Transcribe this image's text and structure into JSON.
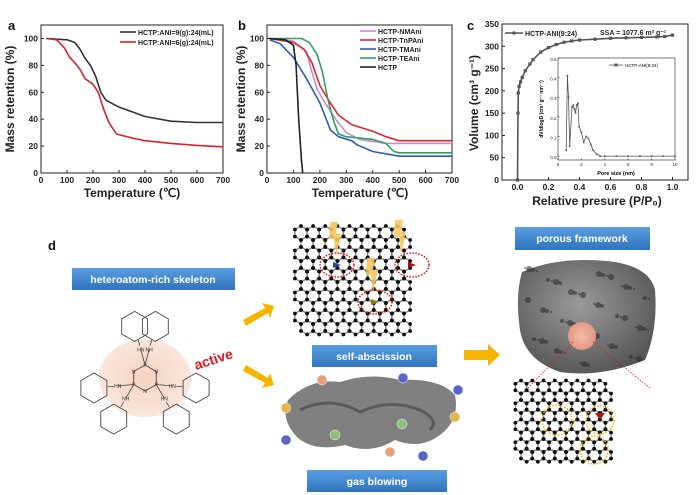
{
  "panel_labels": {
    "a": "a",
    "b": "b",
    "c": "c",
    "d": "d"
  },
  "colors": {
    "box_blue": "#3f86cc",
    "arrow_yellow": "#f5b400",
    "active_red": "#e0151b",
    "glow": "#f7dccb"
  },
  "chart_data": [
    {
      "type": "line",
      "panel": "a",
      "xlabel": "Temperature (℃)",
      "ylabel": "Mass retention (%)",
      "xlim": [
        0,
        700
      ],
      "ylim": [
        0,
        110
      ],
      "xticks": [
        0,
        100,
        200,
        300,
        400,
        500,
        600,
        700
      ],
      "yticks": [
        0,
        20,
        40,
        60,
        80,
        100
      ],
      "grid": false,
      "legend": "top-right",
      "series": [
        {
          "name": "HCTP:ANI=9(g):24(mL)",
          "color": "#333333",
          "points": [
            [
              20,
              100
            ],
            [
              100,
              99
            ],
            [
              130,
              97
            ],
            [
              150,
              92
            ],
            [
              170,
              85
            ],
            [
              190,
              80
            ],
            [
              210,
              72
            ],
            [
              230,
              60
            ],
            [
              250,
              54
            ],
            [
              300,
              49
            ],
            [
              400,
              42
            ],
            [
              500,
              38.5
            ],
            [
              600,
              37.5
            ],
            [
              700,
              37.5
            ]
          ]
        },
        {
          "name": "HCTP:ANI=6(g):24(mL)",
          "color": "#d8232a",
          "points": [
            [
              20,
              100
            ],
            [
              60,
              99
            ],
            [
              90,
              93
            ],
            [
              110,
              86
            ],
            [
              130,
              82
            ],
            [
              150,
              77
            ],
            [
              170,
              70
            ],
            [
              200,
              66
            ],
            [
              220,
              60
            ],
            [
              240,
              48
            ],
            [
              260,
              38
            ],
            [
              290,
              29
            ],
            [
              350,
              26
            ],
            [
              400,
              24
            ],
            [
              500,
              22
            ],
            [
              600,
              20.5
            ],
            [
              700,
              19.5
            ]
          ]
        }
      ]
    },
    {
      "type": "line",
      "panel": "b",
      "xlabel": "Temperature (℃)",
      "ylabel": "Mass retention (%)",
      "xlim": [
        0,
        700
      ],
      "ylim": [
        0,
        110
      ],
      "xticks": [
        0,
        100,
        200,
        300,
        400,
        500,
        600,
        700
      ],
      "yticks": [
        0,
        20,
        40,
        60,
        80,
        100
      ],
      "grid": false,
      "legend": "top-right",
      "series": [
        {
          "name": "HCTP-NMAni",
          "color": "#c98bcb",
          "points": [
            [
              10,
              100
            ],
            [
              100,
              98
            ],
            [
              150,
              90
            ],
            [
              170,
              75
            ],
            [
              190,
              62
            ],
            [
              220,
              52
            ],
            [
              260,
              40
            ],
            [
              300,
              30
            ],
            [
              350,
              25
            ],
            [
              450,
              22
            ],
            [
              500,
              22
            ],
            [
              700,
              22
            ]
          ]
        },
        {
          "name": "HCTP-TnPAni",
          "color": "#e0262e",
          "points": [
            [
              10,
              100
            ],
            [
              100,
              97
            ],
            [
              140,
              92
            ],
            [
              170,
              82
            ],
            [
              200,
              65
            ],
            [
              230,
              55
            ],
            [
              270,
              43
            ],
            [
              320,
              36
            ],
            [
              400,
              31
            ],
            [
              450,
              27
            ],
            [
              500,
              24
            ],
            [
              700,
              24
            ]
          ]
        },
        {
          "name": "HCTP-TMAni",
          "color": "#2a5fb0",
          "points": [
            [
              10,
              99
            ],
            [
              50,
              96
            ],
            [
              100,
              86
            ],
            [
              150,
              70
            ],
            [
              200,
              52
            ],
            [
              240,
              32
            ],
            [
              270,
              27
            ],
            [
              320,
              24
            ],
            [
              340,
              21
            ],
            [
              400,
              16
            ],
            [
              500,
              12.5
            ],
            [
              700,
              12.5
            ]
          ]
        },
        {
          "name": "HCTP-TEAni",
          "color": "#2fa060",
          "points": [
            [
              10,
              100
            ],
            [
              130,
              100
            ],
            [
              160,
              97
            ],
            [
              190,
              88
            ],
            [
              210,
              75
            ],
            [
              230,
              55
            ],
            [
              250,
              40
            ],
            [
              270,
              29
            ],
            [
              300,
              27
            ],
            [
              400,
              25
            ],
            [
              450,
              22
            ],
            [
              480,
              16
            ],
            [
              500,
              15
            ],
            [
              700,
              15
            ]
          ]
        },
        {
          "name": "HCTP",
          "color": "#222222",
          "points": [
            [
              10,
              100
            ],
            [
              70,
              99
            ],
            [
              100,
              95
            ],
            [
              110,
              80
            ],
            [
              120,
              40
            ],
            [
              130,
              10
            ],
            [
              135,
              0
            ]
          ]
        }
      ]
    },
    {
      "type": "line",
      "panel": "c",
      "xlabel": "Relative presure (P/P₀)",
      "ylabel": "Volume (cm³ g⁻¹)",
      "xlim": [
        -0.1,
        1.1
      ],
      "ylim": [
        0,
        350
      ],
      "xticks": [
        0.0,
        0.2,
        0.4,
        0.6,
        0.8,
        1.0
      ],
      "yticks": [
        0,
        50,
        100,
        150,
        200,
        250,
        300,
        350
      ],
      "grid": false,
      "legend": "top-left",
      "annotation": "SSA = 1077.6 m² g⁻¹",
      "series": [
        {
          "name": "HCTP-ANI(9:24)",
          "color": "#555555",
          "marker": "square",
          "points": [
            [
              0,
              0
            ],
            [
              0.003,
              150
            ],
            [
              0.005,
              195
            ],
            [
              0.01,
              210
            ],
            [
              0.02,
              220
            ],
            [
              0.03,
              230
            ],
            [
              0.05,
              245
            ],
            [
              0.08,
              260
            ],
            [
              0.1,
              270
            ],
            [
              0.15,
              287
            ],
            [
              0.2,
              297
            ],
            [
              0.25,
              304
            ],
            [
              0.3,
              309
            ],
            [
              0.35,
              312
            ],
            [
              0.4,
              314
            ],
            [
              0.5,
              316
            ],
            [
              0.6,
              318
            ],
            [
              0.7,
              319
            ],
            [
              0.8,
              320
            ],
            [
              0.9,
              321
            ],
            [
              0.95,
              322
            ],
            [
              1.0,
              325
            ]
          ]
        }
      ],
      "inset": {
        "xlabel": "Pore size (nm)",
        "ylabel": "dV/dlogD (cm³ g⁻¹ nm⁻¹)",
        "xlim": [
          0,
          10
        ],
        "ylim": [
          -0.02,
          0.5
        ],
        "xticks": [
          0,
          2,
          4,
          6,
          8,
          10
        ],
        "yticks": [
          0.0,
          0.1,
          0.2,
          0.3,
          0.4,
          0.5
        ],
        "legend": "top-right",
        "series": [
          {
            "name": "HCTP-ANI(9:24)",
            "color": "#555555",
            "points": [
              [
                0.7,
                0.03
              ],
              [
                0.8,
                0.41
              ],
              [
                0.9,
                0.3
              ],
              [
                1.0,
                0.05
              ],
              [
                1.2,
                0.25
              ],
              [
                1.3,
                0.26
              ],
              [
                1.4,
                0.24
              ],
              [
                1.5,
                0.22
              ],
              [
                1.6,
                0.26
              ],
              [
                1.7,
                0.27
              ],
              [
                1.8,
                0.15
              ],
              [
                2.0,
                0.12
              ],
              [
                2.2,
                0.07
              ],
              [
                2.4,
                0.1
              ],
              [
                2.6,
                0.09
              ],
              [
                2.8,
                0.06
              ],
              [
                3.0,
                0.03
              ],
              [
                3.3,
                0.01
              ],
              [
                3.6,
                0
              ],
              [
                4,
                0
              ],
              [
                5,
                0
              ],
              [
                6,
                0
              ],
              [
                7,
                0
              ],
              [
                8,
                0
              ],
              [
                9,
                0
              ],
              [
                10,
                0
              ]
            ]
          }
        ]
      }
    }
  ],
  "schematic": {
    "skeleton_label": "heteroatom-rich  skeleton",
    "active_label": "active",
    "self_abscission_label": "self-abscission",
    "gas_blowing_label": "gas blowing",
    "porous_framework_label": "porous framework",
    "molecule_atoms": {
      "P": "P",
      "N": "N",
      "NH": "NH",
      "HN": "HN"
    }
  }
}
